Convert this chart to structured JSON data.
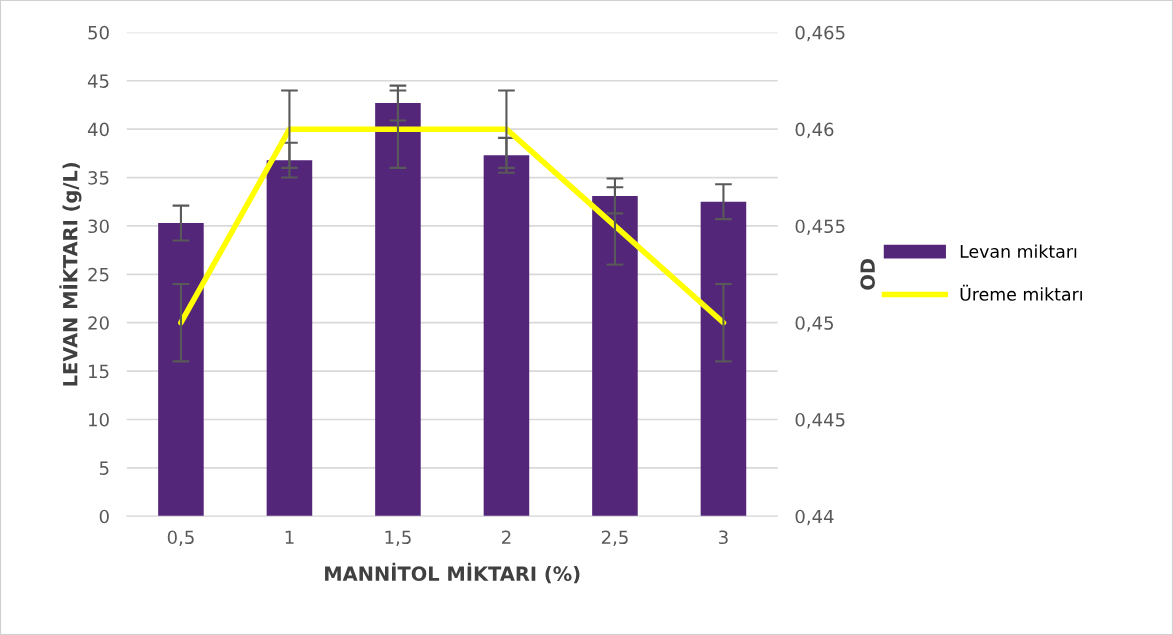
{
  "chart_data": {
    "type": "bar",
    "xlabel": "MANNİTOL MİKTARI (%)",
    "ylabel": "LEVAN MİKTARI (g/L)",
    "y2label": "OD",
    "categories": [
      "0,5",
      "1",
      "1,5",
      "2",
      "2,5",
      "3"
    ],
    "series": [
      {
        "name": "Levan miktarı",
        "color": "#54267a",
        "values": [
          30.3,
          36.8,
          42.7,
          37.3,
          33.1,
          32.5
        ],
        "errors": [
          1.8,
          1.8,
          1.8,
          1.8,
          1.8,
          1.8
        ]
      },
      {
        "name": "Üreme miktarı",
        "type": "line",
        "axis": "y2",
        "color": "#ffff00",
        "values": [
          0.45,
          0.46,
          0.46,
          0.46,
          0.455,
          0.45
        ],
        "errors": [
          0.002,
          0.002,
          0.002,
          0.002,
          0.002,
          0.002
        ]
      }
    ],
    "ylim": [
      0,
      50
    ],
    "yticks": [
      0,
      5,
      10,
      15,
      20,
      25,
      30,
      35,
      40,
      45,
      50
    ],
    "y2lim": [
      0.44,
      0.465
    ],
    "y2ticks": [
      {
        "value": 0.44,
        "label": "0,44"
      },
      {
        "value": 0.445,
        "label": "0,445"
      },
      {
        "value": 0.45,
        "label": "0,45"
      },
      {
        "value": 0.455,
        "label": "0,455"
      },
      {
        "value": 0.46,
        "label": "0,46"
      },
      {
        "value": 0.465,
        "label": "0,465"
      }
    ],
    "grid": "y",
    "legend": "right",
    "marker": "none",
    "line_style": "solid"
  }
}
